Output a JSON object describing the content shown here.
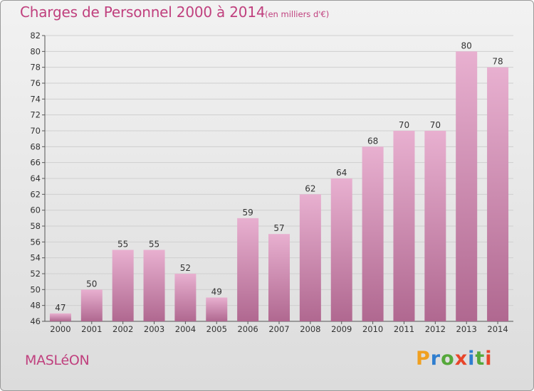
{
  "header": {
    "title": "Charges de Personnel 2000 à 2014",
    "subtitle": "(en milliers d'€)"
  },
  "footer": {
    "commune": "MASLéON",
    "logo_text": "Proxiti"
  },
  "colors": {
    "title": "#c0407e",
    "bar_top": "#e8b0d0",
    "bar_bottom": "#b06890",
    "logo_letters": [
      "#f0a020",
      "#2f7ecf",
      "#55a83a",
      "#e8452a",
      "#2f7ecf",
      "#55a83a",
      "#e8452a"
    ]
  },
  "chart_data": {
    "type": "bar",
    "categories": [
      "2000",
      "2001",
      "2002",
      "2003",
      "2004",
      "2005",
      "2006",
      "2007",
      "2008",
      "2009",
      "2010",
      "2011",
      "2012",
      "2013",
      "2014"
    ],
    "values": [
      47,
      50,
      55,
      55,
      52,
      49,
      59,
      57,
      62,
      64,
      68,
      70,
      70,
      80,
      78
    ],
    "data_labels": [
      "47",
      "50",
      "55",
      "55",
      "52",
      "49",
      "59",
      "57",
      "62",
      "64",
      "68",
      "70",
      "70",
      "80",
      "78"
    ],
    "yticks": [
      46,
      48,
      50,
      52,
      54,
      56,
      58,
      60,
      62,
      64,
      66,
      68,
      70,
      72,
      74,
      76,
      78,
      80,
      82
    ],
    "ylim": [
      46,
      82
    ],
    "grid": "horizontal"
  }
}
